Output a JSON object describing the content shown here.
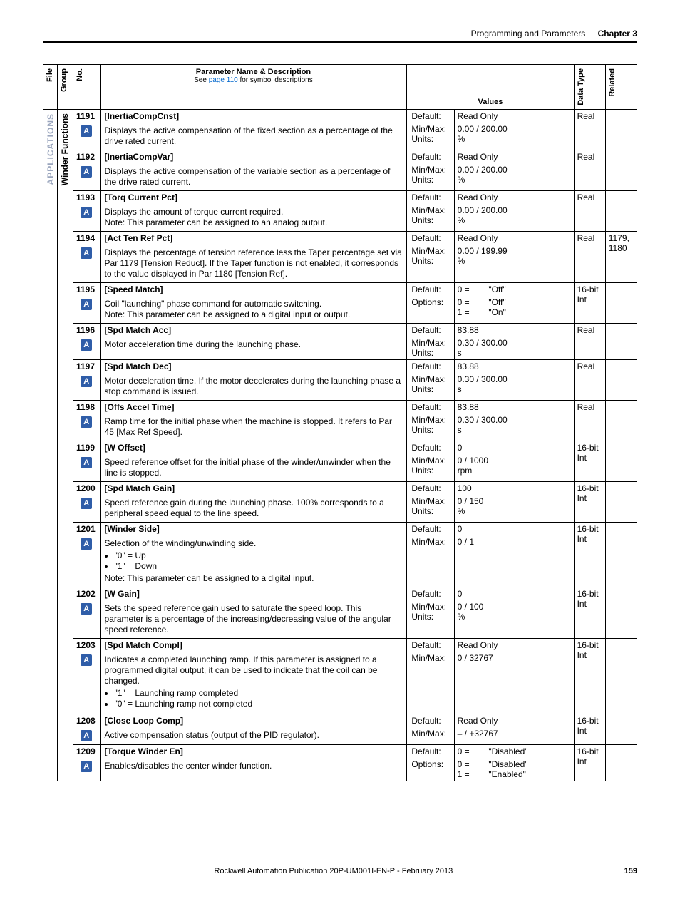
{
  "header": {
    "section": "Programming and Parameters",
    "chapter": "Chapter 3"
  },
  "columns": {
    "file": "File",
    "group": "Group",
    "no": "No.",
    "desc_title": "Parameter Name & Description",
    "desc_sub_pre": "See ",
    "desc_sub_link": "page 110",
    "desc_sub_post": " for symbol descriptions",
    "values": "Values",
    "datatype": "Data Type",
    "related": "Related"
  },
  "file_label": "APPLICATIONS",
  "group_label": "Winder Functions",
  "icon_glyph": "A",
  "rows": [
    {
      "no": "1191",
      "name": "[InertiaCompCnst]",
      "desc": "Displays the active compensation of the fixed section as a percentage of the drive rated current.",
      "lbl1": "Default:",
      "val1": "Read Only",
      "lbl2": "Min/Max:\nUnits:",
      "val2": "0.00 / 200.00\n%",
      "type": "Real",
      "rel": ""
    },
    {
      "no": "1192",
      "name": "[InertiaCompVar]",
      "desc": "Displays the active compensation of the variable section as a percentage of the drive rated current.",
      "lbl1": "Default:",
      "val1": "Read Only",
      "lbl2": "Min/Max:\nUnits:",
      "val2": "0.00 / 200.00\n%",
      "type": "Real",
      "rel": ""
    },
    {
      "no": "1193",
      "name": "[Torq Current Pct]",
      "desc": "Displays the amount of torque current required.\nNote: This parameter can be assigned to an analog output.",
      "lbl1": "Default:",
      "val1": "Read Only",
      "lbl2": "Min/Max:\nUnits:",
      "val2": "0.00 / 200.00\n%",
      "type": "Real",
      "rel": ""
    },
    {
      "no": "1194",
      "name": "[Act Ten Ref Pct]",
      "desc": "Displays the percentage of tension reference less the Taper percentage set via Par 1179 [Tension Reduct]. If the Taper function is not enabled, it corresponds to the value displayed in Par 1180 [Tension Ref].",
      "lbl1": "Default:",
      "val1": "Read Only",
      "lbl2": "Min/Max:\nUnits:",
      "val2": "0.00 / 199.99\n%",
      "type": "Real",
      "rel": "1179, 1180"
    },
    {
      "no": "1195",
      "name": "[Speed Match]",
      "desc": "Coil \"launching\" phase command for automatic switching.\nNote: This parameter can be assigned to a digital input or output.",
      "lbl1": "Default:",
      "val1": "0 =        \"Off\"",
      "lbl2": "Options:",
      "val2": "0 =        \"Off\"\n1 =        \"On\"",
      "type": "16-bit Int",
      "rel": ""
    },
    {
      "no": "1196",
      "name": "[Spd Match Acc]",
      "desc": "Motor acceleration time during the launching phase.",
      "lbl1": "Default:",
      "val1": "83.88",
      "lbl2": "Min/Max:\nUnits:",
      "val2": "0.30 / 300.00\ns",
      "type": "Real",
      "rel": ""
    },
    {
      "no": "1197",
      "name": "[Spd Match Dec]",
      "desc": "Motor deceleration time. If the motor decelerates during the launching phase a stop command is issued.",
      "lbl1": "Default:",
      "val1": "83.88",
      "lbl2": "Min/Max:\nUnits:",
      "val2": "0.30 / 300.00\ns",
      "type": "Real",
      "rel": ""
    },
    {
      "no": "1198",
      "name": "[Offs Accel Time]",
      "desc": "Ramp time for the initial phase when the machine is stopped. It refers to Par 45 [Max Ref Speed].",
      "lbl1": "Default:",
      "val1": "83.88",
      "lbl2": "Min/Max:\nUnits:",
      "val2": "0.30 / 300.00\ns",
      "type": "Real",
      "rel": ""
    },
    {
      "no": "1199",
      "name": "[W Offset]",
      "desc": "Speed reference offset for the initial phase of the winder/unwinder when the line is stopped.",
      "lbl1": "Default:",
      "val1": "0",
      "lbl2": "Min/Max:\nUnits:",
      "val2": "0 / 1000\nrpm",
      "type": "16-bit Int",
      "rel": ""
    },
    {
      "no": "1200",
      "name": "[Spd Match Gain]",
      "desc": "Speed reference gain during the launching phase. 100% corresponds to a peripheral speed equal to the line speed.",
      "lbl1": "Default:",
      "val1": "100",
      "lbl2": "Min/Max:\nUnits:",
      "val2": "0 / 150\n%",
      "type": "16-bit Int",
      "rel": ""
    },
    {
      "no": "1201",
      "name": "[Winder Side]",
      "desc_html": "Selection of the winding/unwinding side.<ul class='b'><li>\"0\" = Up</li><li>\"1\" = Down</li></ul>Note: This parameter can be assigned to a digital input.",
      "lbl1": "Default:",
      "val1": "0",
      "lbl2": "Min/Max:",
      "val2": "0 / 1",
      "type": "16-bit Int",
      "rel": ""
    },
    {
      "no": "1202",
      "name": "[W Gain]",
      "desc": "Sets the speed reference gain used to saturate the speed loop. This parameter is a percentage of the increasing/decreasing value of the angular speed reference.",
      "lbl1": "Default:",
      "val1": "0",
      "lbl2": "Min/Max:\nUnits:",
      "val2": "0 / 100\n%",
      "type": "16-bit Int",
      "rel": ""
    },
    {
      "no": "1203",
      "name": "[Spd Match Compl]",
      "desc_html": "Indicates a completed launching ramp. If this parameter is assigned to a programmed digital output, it can be used to indicate that the coil can be changed.<ul class='b'><li>\"1\" = Launching ramp completed</li><li>\"0\" = Launching ramp not completed</li></ul>",
      "lbl1": "Default:",
      "val1": "Read Only",
      "lbl2": "Min/Max:",
      "val2": "0 / 32767",
      "type": "16-bit Int",
      "rel": ""
    },
    {
      "no": "1208",
      "name": "[Close Loop Comp]",
      "desc": "Active compensation status (output of the PID regulator).",
      "lbl1": "Default:",
      "val1": "Read Only",
      "lbl2": "Min/Max:",
      "val2": "– / +32767",
      "type": "16-bit Int",
      "rel": ""
    },
    {
      "no": "1209",
      "name": "[Torque Winder En]",
      "desc": "Enables/disables the center winder function.",
      "lbl1": "Default:",
      "val1": "0 =        \"Disabled\"",
      "lbl2": "Options:",
      "val2": "0 =        \"Disabled\"\n1 =        \"Enabled\"",
      "type": "16-bit Int",
      "rel": ""
    }
  ],
  "footer": {
    "pub": "Rockwell Automation Publication 20P-UM001I-EN-P - February 2013",
    "page": "159"
  }
}
